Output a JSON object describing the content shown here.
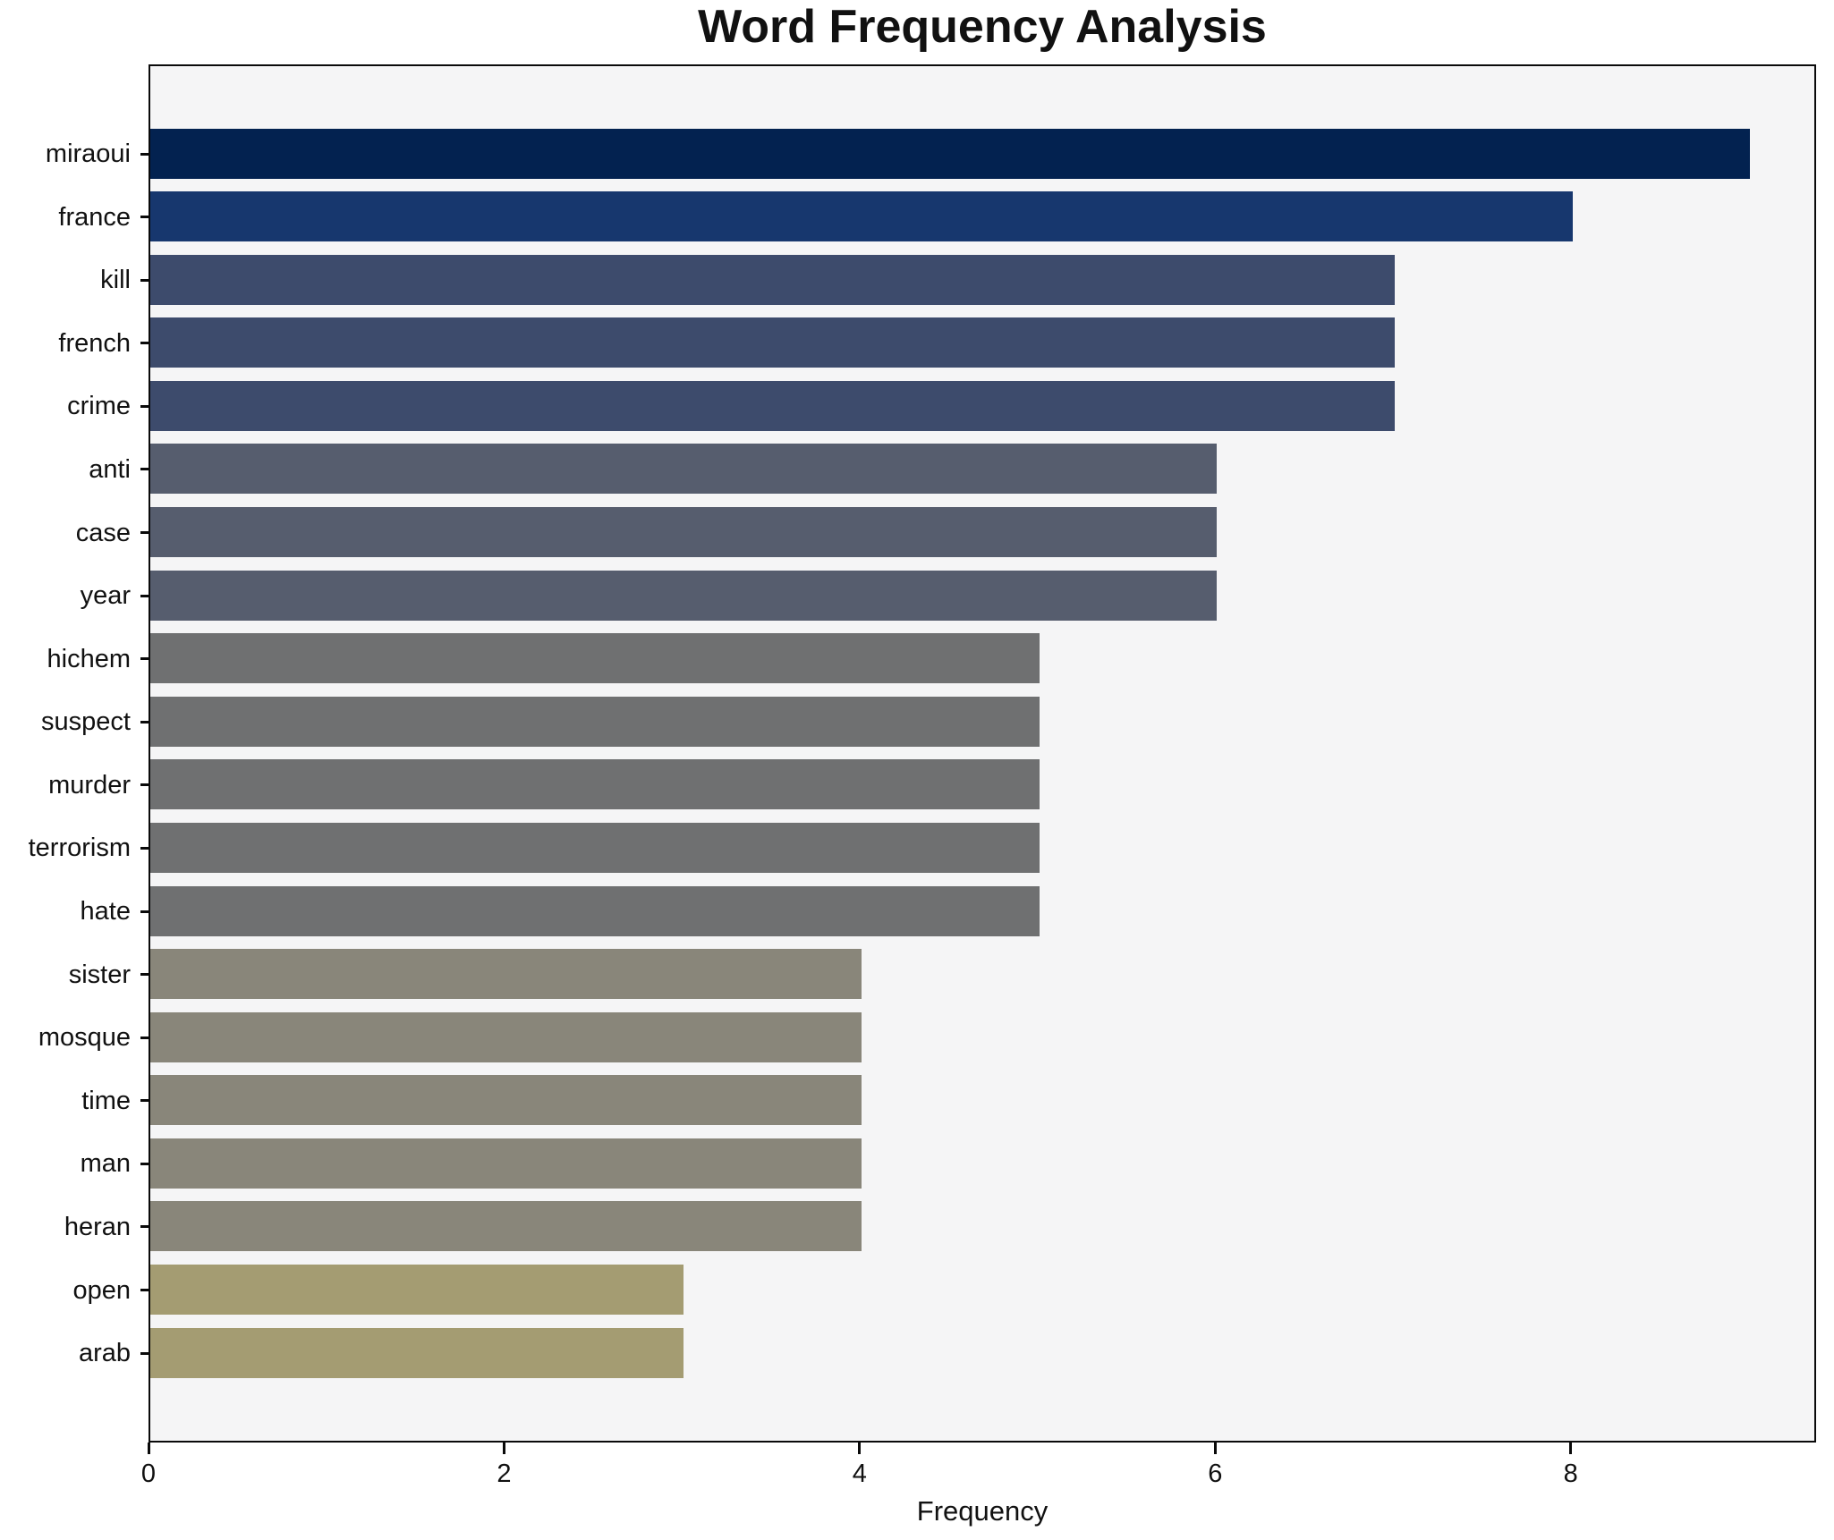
{
  "chart_data": {
    "type": "bar",
    "orientation": "horizontal",
    "title": "Word Frequency Analysis",
    "xlabel": "Frequency",
    "ylabel": "",
    "categories": [
      "miraoui",
      "france",
      "kill",
      "french",
      "crime",
      "anti",
      "case",
      "year",
      "hichem",
      "suspect",
      "murder",
      "terrorism",
      "hate",
      "sister",
      "mosque",
      "time",
      "man",
      "heran",
      "open",
      "arab"
    ],
    "values": [
      9,
      8,
      7,
      7,
      7,
      6,
      6,
      6,
      5,
      5,
      5,
      5,
      5,
      4,
      4,
      4,
      4,
      4,
      3,
      3
    ],
    "bar_colors": [
      "#032250",
      "#17376e",
      "#3d4b6c",
      "#3d4b6c",
      "#3d4b6c",
      "#565d6e",
      "#565d6e",
      "#565d6e",
      "#6f7071",
      "#6f7071",
      "#6f7071",
      "#6f7071",
      "#6f7071",
      "#89867a",
      "#89867a",
      "#89867a",
      "#89867a",
      "#89867a",
      "#a49c72",
      "#a49c72"
    ],
    "xlim": [
      0,
      9.38
    ],
    "x_ticks": [
      0,
      2,
      4,
      6,
      8
    ],
    "grid": false,
    "legend": "none",
    "plot_bg": "#f5f5f6",
    "figure_bg": "#ffffff",
    "spine_color": "#0a0a0a"
  }
}
